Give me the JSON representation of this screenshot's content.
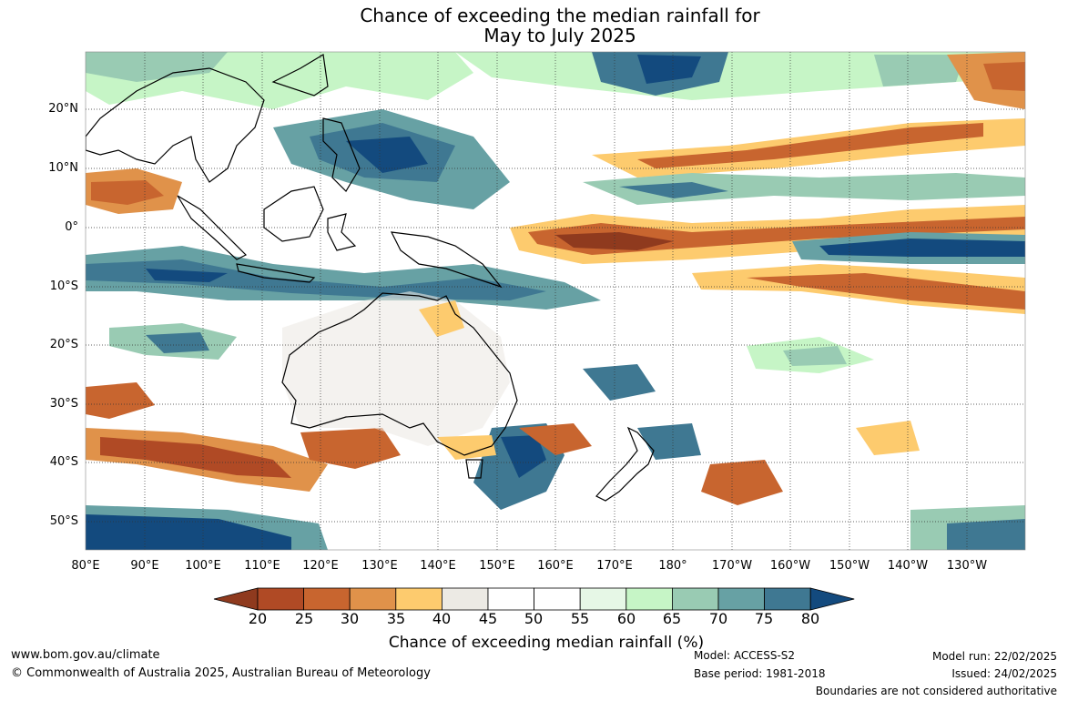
{
  "title": {
    "line1": "Chance of exceeding the median rainfall for",
    "line2": "May to July 2025"
  },
  "map": {
    "lat_labels": [
      "20°N",
      "10°N",
      "0°",
      "10°S",
      "20°S",
      "30°S",
      "40°S",
      "50°S"
    ],
    "lon_labels": [
      "80°E",
      "90°E",
      "100°E",
      "110°E",
      "120°E",
      "130°E",
      "140°E",
      "150°E",
      "160°E",
      "170°E",
      "180°",
      "170°W",
      "160°W",
      "150°W",
      "140°W",
      "130°W"
    ],
    "lat_range": [
      -55,
      30
    ],
    "lon_range": [
      80,
      240
    ],
    "gridlines": true
  },
  "colorbar": {
    "title": "Chance of exceeding median rainfall (%)",
    "ticks": [
      "20",
      "25",
      "30",
      "35",
      "40",
      "45",
      "50",
      "55",
      "60",
      "65",
      "70",
      "75",
      "80"
    ],
    "colors": [
      "#8f3a1e",
      "#b04a25",
      "#c8652f",
      "#e0924a",
      "#fdcb6e",
      "#eceae4",
      "#ffffff",
      "#ffffff",
      "#e6f7e6",
      "#c6f5c6",
      "#99cbb3",
      "#67a1a4",
      "#3f7892",
      "#134a7e"
    ]
  },
  "footer": {
    "website": "www.bom.gov.au/climate",
    "copyright": "© Commonwealth of Australia 2025, Australian Bureau of Meteorology",
    "model": "Model: ACCESS-S2",
    "base_period": "Base period: 1981-2018",
    "model_run": "Model run: 22/02/2025",
    "issued": "Issued: 24/02/2025",
    "disclaimer": "Boundaries are not considered authoritative"
  }
}
